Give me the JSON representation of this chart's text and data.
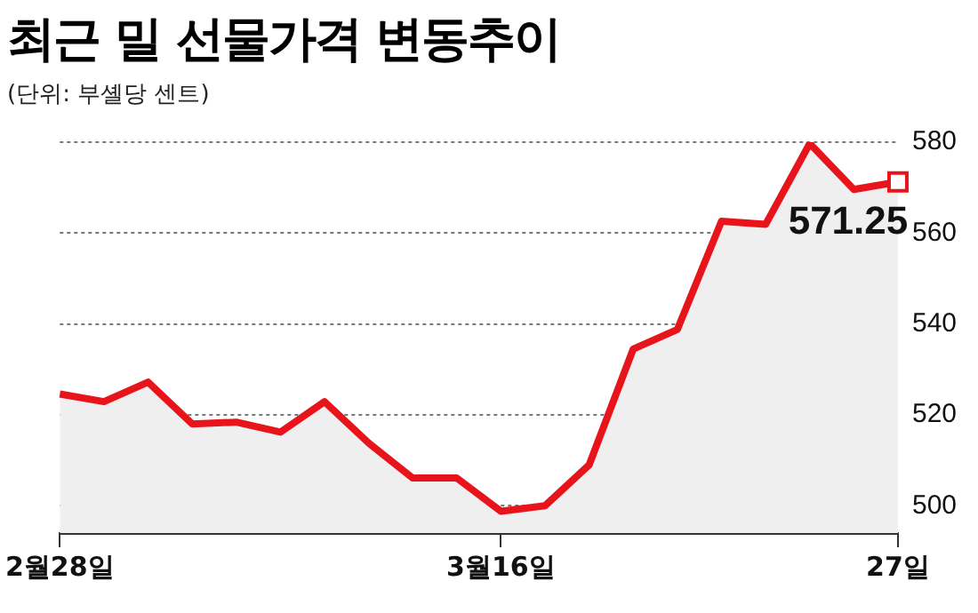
{
  "chart_data": {
    "type": "area",
    "title": "최근 밀 선물가격 변동추이",
    "subtitle": "(단위: 부셸당 센트)",
    "categories": [
      "2월28일",
      null,
      null,
      null,
      null,
      null,
      null,
      null,
      null,
      null,
      "3월16일",
      null,
      null,
      null,
      null,
      null,
      null,
      null,
      null,
      "27일"
    ],
    "series": [
      {
        "color": "#e8141c",
        "values": [
          524.6,
          522.9,
          527.2,
          518.0,
          518.4,
          516.2,
          522.9,
          513.8,
          506.1,
          506.1,
          498.8,
          500.0,
          509.0,
          534.5,
          538.8,
          562.6,
          561.9,
          579.7,
          569.6,
          571.25
        ]
      }
    ],
    "ylim": [
      494,
      580
    ],
    "yticks": [
      500,
      520,
      540,
      560,
      580
    ],
    "grid": "y",
    "legend": false,
    "marker": "none",
    "line_style": "solid",
    "annotations": [
      {
        "text": "571.25",
        "x": "27일",
        "y": 571.25
      }
    ]
  }
}
